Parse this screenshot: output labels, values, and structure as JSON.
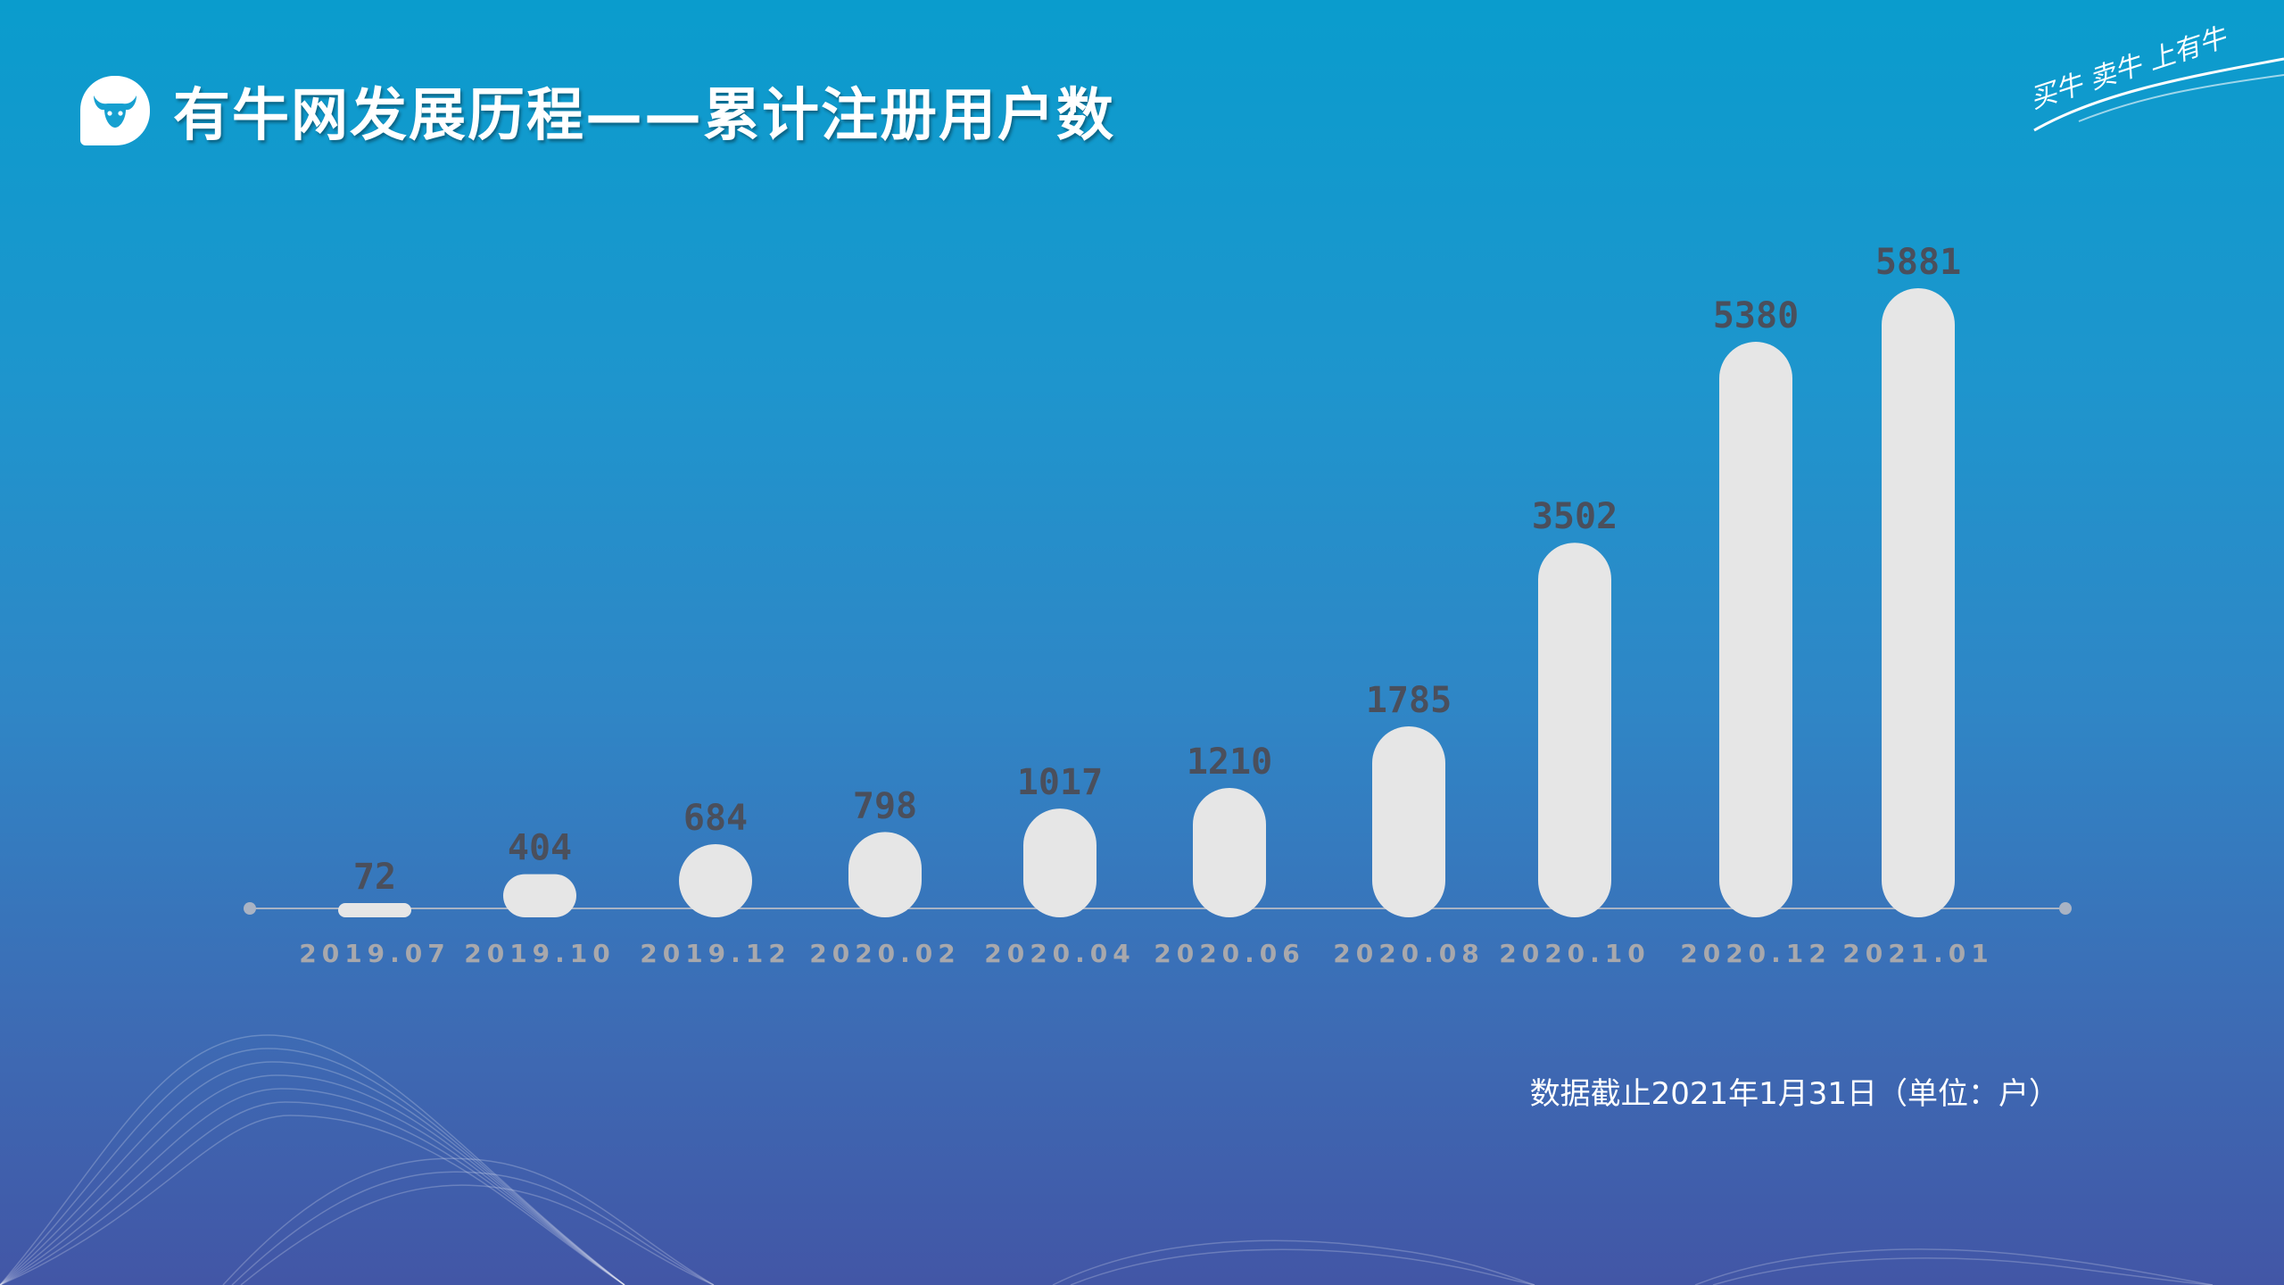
{
  "header": {
    "title": "有牛网发展历程——累计注册用户数",
    "logo_icon": "bull-head-icon",
    "slogan": "买牛 卖牛 上有牛"
  },
  "footnote": "数据截止2021年1月31日（单位：户）",
  "colors": {
    "bar": "#e6e6e6",
    "value_label": "#4a4f5c",
    "category_label": "#a8a8ac",
    "axis": "#a9b3c4"
  },
  "chart_data": {
    "type": "bar",
    "title": "有牛网发展历程——累计注册用户数",
    "xlabel": "",
    "ylabel": "",
    "categories": [
      "2019.07",
      "2019.10",
      "2019.12",
      "2020.02",
      "2020.04",
      "2020.06",
      "2020.08",
      "2020.10",
      "2020.12",
      "2021.01"
    ],
    "values": [
      72,
      404,
      684,
      798,
      1017,
      1210,
      1785,
      3502,
      5380,
      5881
    ],
    "ylim": [
      0,
      6500
    ],
    "grid": false,
    "legend": "none"
  }
}
